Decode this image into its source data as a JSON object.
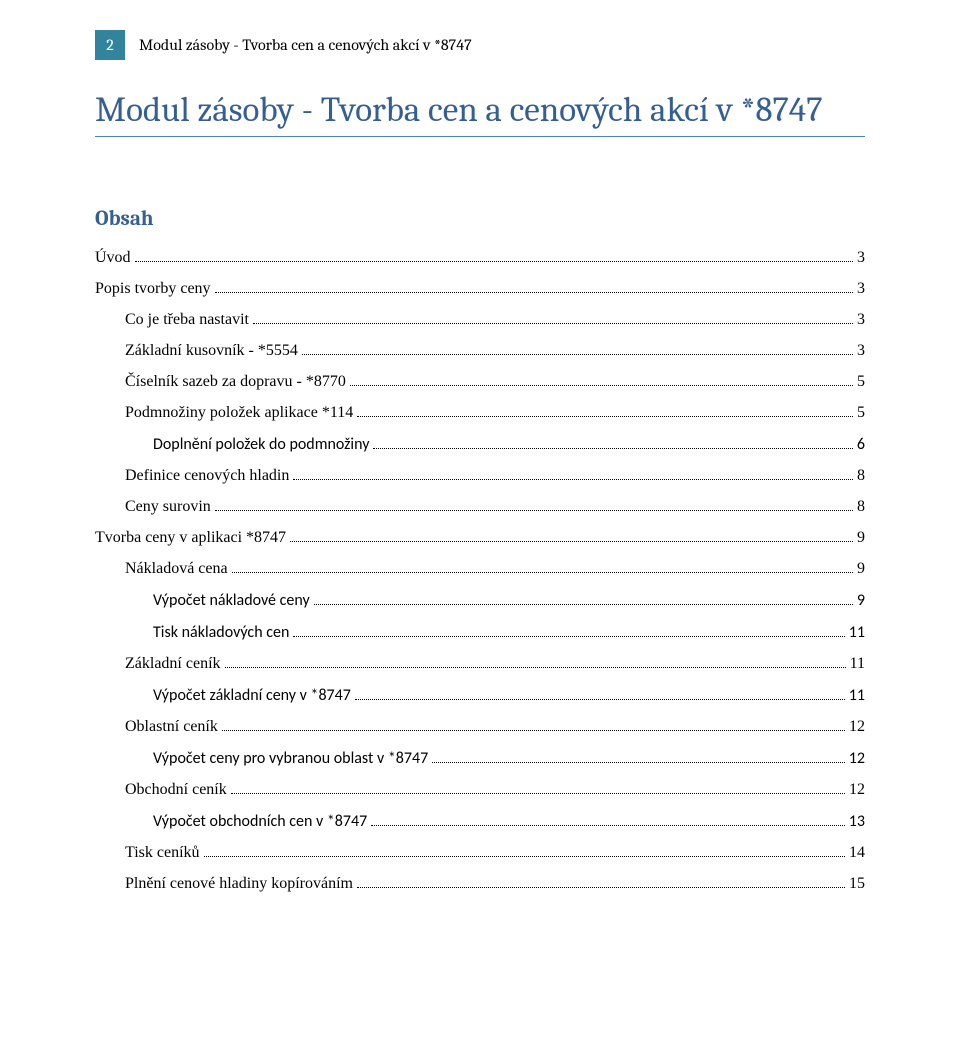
{
  "header": {
    "page_number": "2",
    "running_title": "Modul zásoby - Tvorba cen a cenových akcí v *8747"
  },
  "document_title": "Modul zásoby - Tvorba cen a cenových akcí v *8747",
  "toc_heading": "Obsah",
  "colors": {
    "accent_box": "#31849b",
    "heading_blue": "#365f91",
    "rule_blue": "#4f81bd",
    "text": "#000000",
    "background": "#ffffff"
  },
  "toc": [
    {
      "label": "Úvod",
      "page": "3",
      "level": 0,
      "font": "times"
    },
    {
      "label": "Popis tvorby ceny",
      "page": "3",
      "level": 0,
      "font": "times"
    },
    {
      "label": "Co je třeba nastavit",
      "page": "3",
      "level": 1,
      "font": "times"
    },
    {
      "label": "Základní kusovník - *5554",
      "page": "3",
      "level": 1,
      "font": "times"
    },
    {
      "label": "Číselník sazeb za dopravu - *8770",
      "page": "5",
      "level": 1,
      "font": "times"
    },
    {
      "label": "Podmnožiny položek aplikace *114",
      "page": "5",
      "level": 1,
      "font": "times"
    },
    {
      "label": "Doplnění položek do podmnožiny",
      "page": "6",
      "level": 2,
      "font": "calibri"
    },
    {
      "label": "Definice cenových hladin",
      "page": "8",
      "level": 1,
      "font": "times"
    },
    {
      "label": "Ceny surovin",
      "page": "8",
      "level": 1,
      "font": "times"
    },
    {
      "label": "Tvorba ceny v aplikaci *8747",
      "page": "9",
      "level": 0,
      "font": "times"
    },
    {
      "label": "Nákladová cena",
      "page": "9",
      "level": 1,
      "font": "times"
    },
    {
      "label": "Výpočet nákladové ceny",
      "page": "9",
      "level": 2,
      "font": "calibri"
    },
    {
      "label": "Tisk nákladových cen",
      "page": "11",
      "level": 2,
      "font": "calibri"
    },
    {
      "label": "Základní ceník",
      "page": "11",
      "level": 1,
      "font": "times"
    },
    {
      "label": "Výpočet základní ceny v *8747",
      "page": "11",
      "level": 2,
      "font": "calibri"
    },
    {
      "label": "Oblastní ceník",
      "page": "12",
      "level": 1,
      "font": "times"
    },
    {
      "label": "Výpočet ceny pro vybranou oblast v *8747",
      "page": "12",
      "level": 2,
      "font": "calibri"
    },
    {
      "label": "Obchodní ceník",
      "page": "12",
      "level": 1,
      "font": "times"
    },
    {
      "label": "Výpočet obchodních cen v *8747",
      "page": "13",
      "level": 2,
      "font": "calibri"
    },
    {
      "label": "Tisk ceníků",
      "page": "14",
      "level": 1,
      "font": "times"
    },
    {
      "label": "Plnění cenové hladiny kopírováním",
      "page": "15",
      "level": 1,
      "font": "times"
    }
  ]
}
